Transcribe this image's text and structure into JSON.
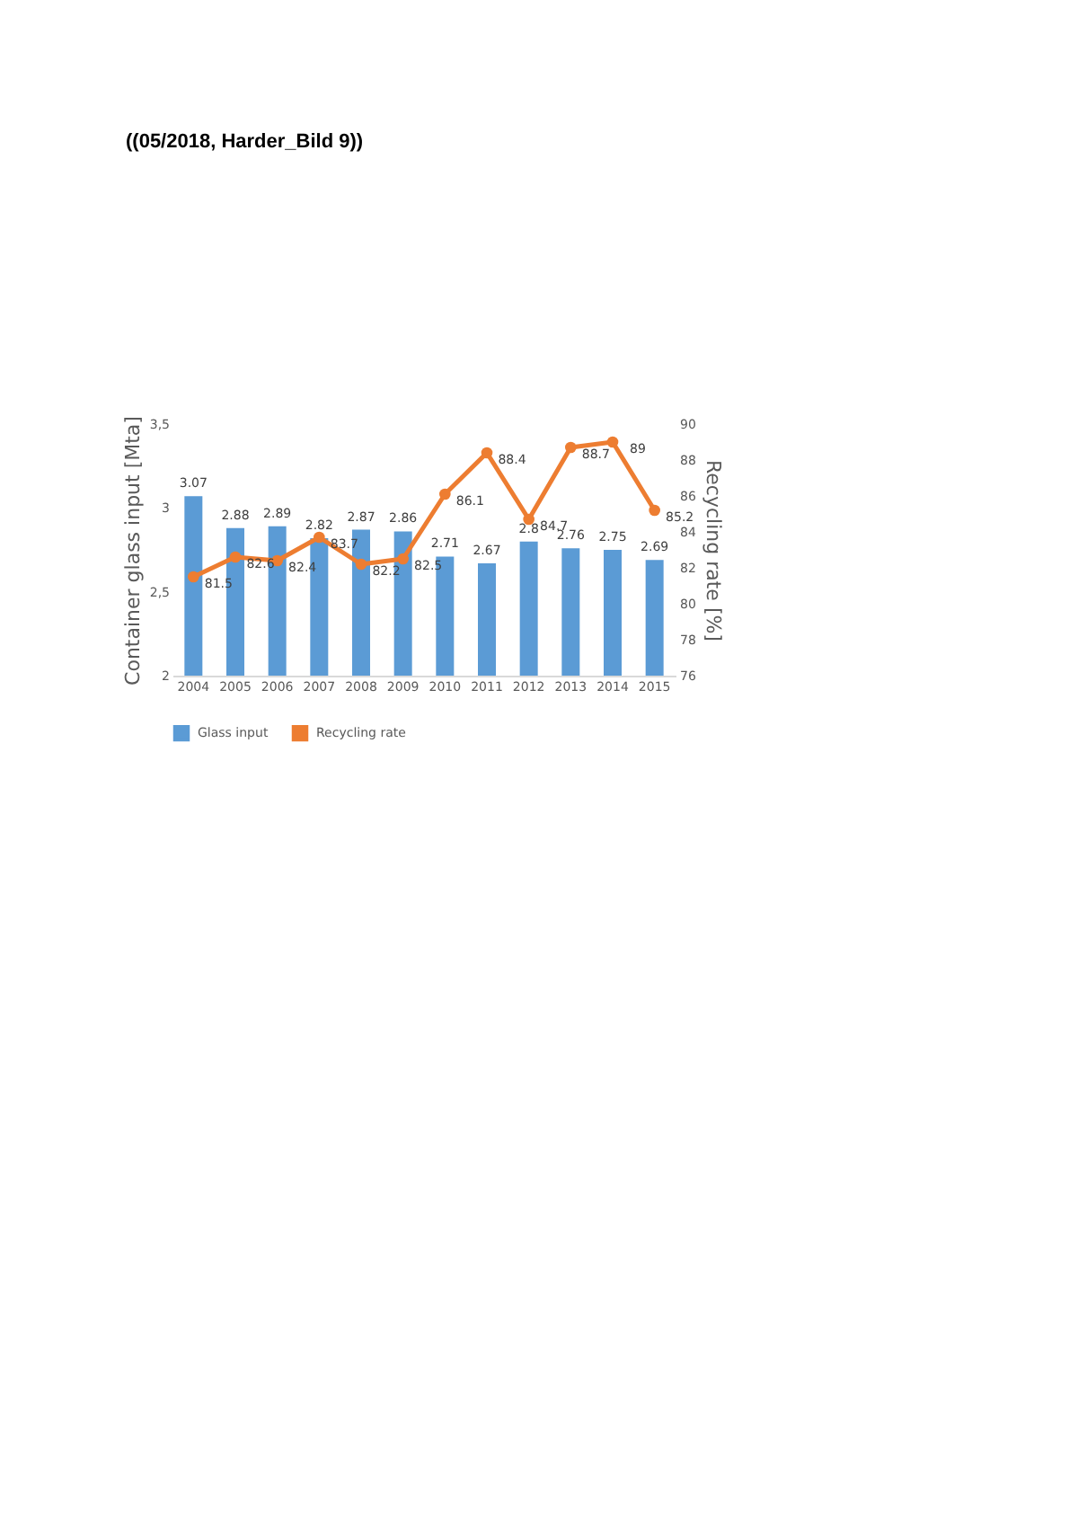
{
  "chart_data": {
    "type": "bar",
    "title": "((05/2018, Harder_Bild 9))",
    "categories": [
      "2004",
      "2005",
      "2006",
      "2007",
      "2008",
      "2009",
      "2010",
      "2011",
      "2012",
      "2013",
      "2014",
      "2015"
    ],
    "series": [
      {
        "name": "Glass input",
        "color": "#5b9bd5",
        "values": [
          3.07,
          2.88,
          2.89,
          2.82,
          2.87,
          2.86,
          2.71,
          2.67,
          2.8,
          2.76,
          2.75,
          2.69
        ]
      },
      {
        "name": "Recycling rate",
        "type": "line",
        "axis": "y2",
        "color": "#ed7d31",
        "marker": "circle",
        "values": [
          81.5,
          82.6,
          82.4,
          83.7,
          82.2,
          82.5,
          86.1,
          88.4,
          84.7,
          88.7,
          89,
          85.2
        ]
      }
    ],
    "ylabel": "Container glass input [Mta]",
    "y2label": "Recycling rate [%]",
    "ylim": [
      2,
      3.5
    ],
    "yticks": [
      2,
      {
        "value": 2.5,
        "label": "2,5"
      },
      3,
      {
        "value": 3.5,
        "label": "3,5"
      }
    ],
    "y2lim": [
      76,
      90
    ],
    "y2ticks": [
      76,
      78,
      80,
      82,
      84,
      86,
      88,
      90
    ],
    "data_labels": true,
    "legend": "bottom",
    "grid": false
  }
}
